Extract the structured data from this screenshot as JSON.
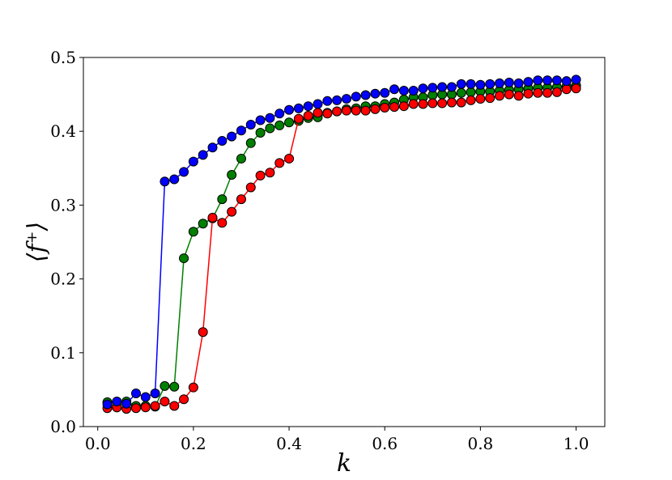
{
  "chart_data": {
    "type": "line",
    "title": "",
    "xlabel": "k",
    "ylabel": "⟨f⁺⟩",
    "xlim": [
      -0.03,
      1.06
    ],
    "ylim": [
      0.0,
      0.5
    ],
    "xticks": [
      "0.0",
      "0.2",
      "0.4",
      "0.6",
      "0.8",
      "1.0"
    ],
    "yticks": [
      "0.0",
      "0.1",
      "0.2",
      "0.3",
      "0.4",
      "0.5"
    ],
    "grid": false,
    "x": [
      0.02,
      0.04,
      0.06,
      0.08,
      0.1,
      0.12,
      0.14,
      0.16,
      0.18,
      0.2,
      0.22,
      0.24,
      0.26,
      0.28,
      0.3,
      0.32,
      0.34,
      0.36,
      0.38,
      0.4,
      0.42,
      0.44,
      0.46,
      0.48,
      0.5,
      0.52,
      0.54,
      0.56,
      0.58,
      0.6,
      0.62,
      0.64,
      0.66,
      0.68,
      0.7,
      0.72,
      0.74,
      0.76,
      0.78,
      0.8,
      0.82,
      0.84,
      0.86,
      0.88,
      0.9,
      0.92,
      0.94,
      0.96,
      0.98,
      1.0
    ],
    "series": [
      {
        "name": "green",
        "color": "#008000",
        "values": [
          0.033,
          0.026,
          0.034,
          0.028,
          0.028,
          0.027,
          0.055,
          0.054,
          0.228,
          0.264,
          0.275,
          0.282,
          0.308,
          0.341,
          0.363,
          0.384,
          0.398,
          0.404,
          0.408,
          0.412,
          0.414,
          0.418,
          0.419,
          0.425,
          0.427,
          0.43,
          0.431,
          0.434,
          0.434,
          0.437,
          0.439,
          0.443,
          0.446,
          0.446,
          0.449,
          0.45,
          0.45,
          0.452,
          0.453,
          0.454,
          0.454,
          0.455,
          0.456,
          0.457,
          0.458,
          0.459,
          0.459,
          0.46,
          0.461,
          0.462
        ]
      },
      {
        "name": "red",
        "color": "#ff0000",
        "values": [
          0.025,
          0.026,
          0.024,
          0.025,
          0.026,
          0.028,
          0.034,
          0.028,
          0.037,
          0.053,
          0.128,
          0.283,
          0.276,
          0.291,
          0.308,
          0.324,
          0.34,
          0.344,
          0.357,
          0.363,
          0.417,
          0.421,
          0.425,
          0.424,
          0.427,
          0.428,
          0.428,
          0.428,
          0.43,
          0.432,
          0.433,
          0.434,
          0.437,
          0.437,
          0.438,
          0.438,
          0.439,
          0.439,
          0.442,
          0.444,
          0.445,
          0.448,
          0.45,
          0.448,
          0.451,
          0.452,
          0.452,
          0.453,
          0.457,
          0.458
        ]
      },
      {
        "name": "blue",
        "color": "#0000ff",
        "values": [
          0.03,
          0.034,
          0.031,
          0.045,
          0.04,
          0.045,
          0.332,
          0.335,
          0.345,
          0.359,
          0.368,
          0.378,
          0.387,
          0.393,
          0.401,
          0.409,
          0.415,
          0.418,
          0.424,
          0.429,
          0.431,
          0.434,
          0.437,
          0.441,
          0.442,
          0.444,
          0.447,
          0.449,
          0.451,
          0.452,
          0.457,
          0.455,
          0.455,
          0.458,
          0.459,
          0.46,
          0.46,
          0.464,
          0.464,
          0.463,
          0.464,
          0.465,
          0.466,
          0.465,
          0.467,
          0.469,
          0.469,
          0.469,
          0.468,
          0.47
        ]
      }
    ]
  }
}
